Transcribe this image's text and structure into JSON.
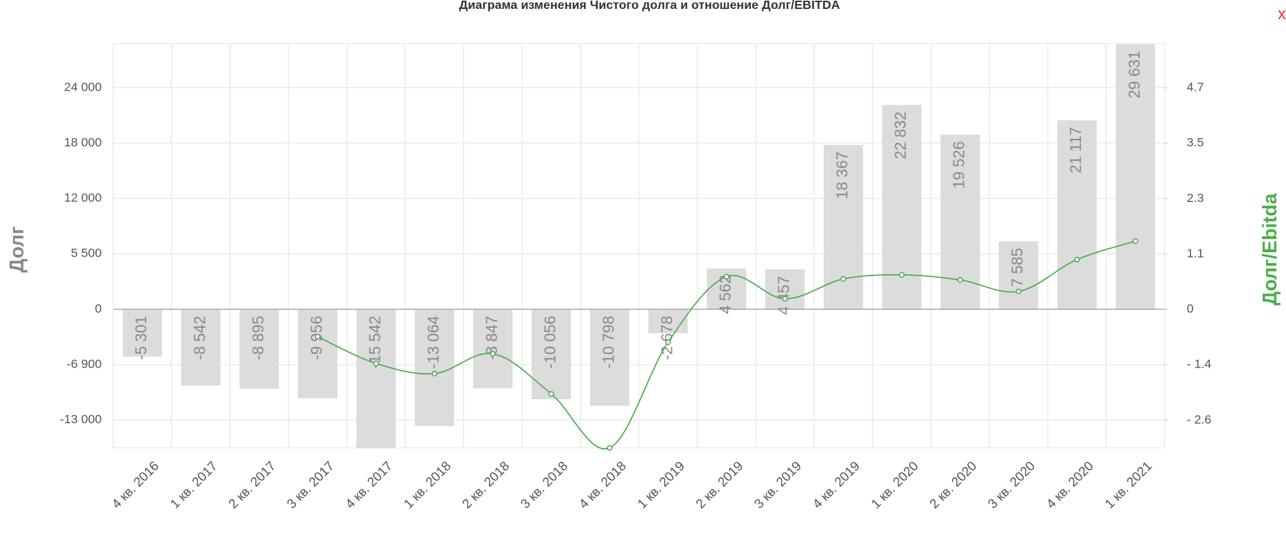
{
  "chart_data": {
    "type": "bar_line",
    "title": "Диаграма изменения Чистого долга и отношение Долг/EBITDA",
    "close_label": "x",
    "y_label": "Долг",
    "y2_label": "Долг/Ebitda",
    "categories": [
      "4 кв. 2016",
      "1 кв. 2017",
      "2 кв. 2017",
      "3 кв. 2017",
      "4 кв. 2017",
      "1 кв. 2018",
      "2 кв. 2018",
      "3 кв. 2018",
      "4 кв. 2018",
      "1 кв. 2019",
      "2 кв. 2019",
      "3 кв. 2019",
      "4 кв. 2019",
      "1 кв. 2020",
      "2 кв. 2020",
      "3 кв. 2020",
      "4 кв. 2020",
      "1 кв. 2021"
    ],
    "series": [
      {
        "name": "Долг",
        "type": "bar",
        "color": "#dcdcdc",
        "values": [
          -5301,
          -8542,
          -8895,
          -9956,
          -15542,
          -13064,
          -8847,
          -10056,
          -10798,
          -2678,
          4562,
          4457,
          18367,
          22832,
          19526,
          7585,
          21117,
          29631
        ],
        "value_labels": [
          "-5 301",
          "-8 542",
          "-8 895",
          "-9 956",
          "-15 542",
          "-13 064",
          "-8 847",
          "-10 056",
          "-10 798",
          "-2 678",
          "4 562",
          "4 457",
          "18 367",
          "22 832",
          "19 526",
          "7 585",
          "21 117",
          "29 631"
        ]
      },
      {
        "name": "Долг/Ebitda",
        "type": "line",
        "axis": "y2",
        "color": "#4cae4c",
        "values": [
          null,
          null,
          null,
          -0.59,
          -1.17,
          -1.39,
          -0.96,
          -1.83,
          -3.0,
          -0.71,
          0.71,
          0.23,
          0.66,
          0.75,
          0.64,
          0.39,
          1.08,
          1.48
        ]
      }
    ],
    "ylim": [
      -15500,
      29700
    ],
    "yticks": [
      {
        "value": 24770,
        "label": "24 000"
      },
      {
        "value": 18580,
        "label": "18 000"
      },
      {
        "value": 12385,
        "label": "12 000"
      },
      {
        "value": 6193,
        "label": "5 500"
      },
      0,
      {
        "value": -6193,
        "label": "-6 900"
      },
      {
        "value": -12385,
        "label": "-13 000"
      }
    ],
    "y2lim": [
      -3.0,
      5.76
    ],
    "y2ticks": [
      {
        "value": 4.8,
        "label": "4.7"
      },
      {
        "value": 3.6,
        "label": "3.5"
      },
      {
        "value": 2.4,
        "label": "2.3"
      },
      {
        "value": 1.2,
        "label": "1.1"
      },
      0,
      {
        "value": -1.2,
        "label": "- 1.4"
      },
      {
        "value": -2.4,
        "label": "- 2.6"
      }
    ],
    "grid": true
  }
}
